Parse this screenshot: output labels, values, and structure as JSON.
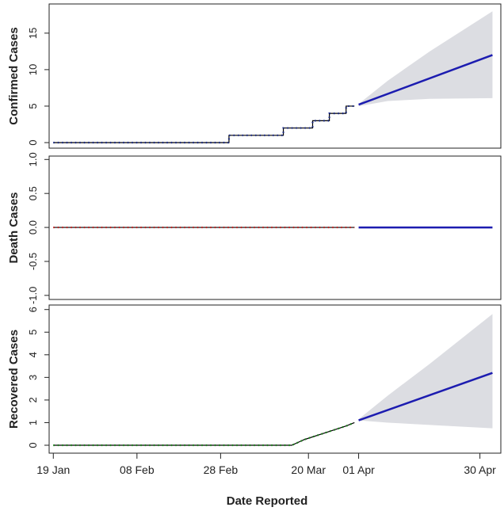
{
  "chart_data": [
    {
      "type": "line",
      "ylabel": "Confirmed Cases",
      "xlim": [
        -1,
        107
      ],
      "ylim": [
        -0.76,
        19
      ],
      "yticks": [
        0,
        5,
        10,
        15
      ],
      "series": [
        {
          "color": "#000000",
          "marker_color": "#1a2a8a",
          "style": "dotted",
          "x": [
            0,
            42,
            42,
            55,
            55,
            62,
            62,
            66,
            66,
            70,
            70,
            72
          ],
          "values": [
            0,
            0,
            1,
            1,
            2,
            2,
            3,
            3,
            4,
            4,
            5,
            5
          ]
        },
        {
          "color": "#1c1cb0",
          "style": "solid",
          "x": [
            73,
            105
          ],
          "values": [
            5.2,
            12
          ]
        }
      ],
      "band": {
        "color": "#dcdde2",
        "x": [
          73,
          80,
          90,
          105
        ],
        "lower": [
          5.0,
          5.7,
          6.0,
          6.1
        ],
        "upper": [
          5.3,
          8.5,
          12.5,
          18
        ]
      }
    },
    {
      "type": "line",
      "ylabel": "Death Cases",
      "xlim": [
        -1,
        107
      ],
      "ylim": [
        -1.06,
        1.05
      ],
      "yticks": [
        {
          "value": -1,
          "label": "-1.0"
        },
        -0.5,
        {
          "value": 0,
          "label": "0.0"
        },
        0.5,
        {
          "value": 1,
          "label": "1.0"
        }
      ],
      "series": [
        {
          "color": "#000000",
          "marker_color": "#d02020",
          "style": "dotted",
          "x": [
            0,
            72
          ],
          "values": [
            0,
            0
          ]
        },
        {
          "color": "#1c1cb0",
          "style": "solid",
          "x": [
            73,
            105
          ],
          "values": [
            0,
            0
          ]
        }
      ]
    },
    {
      "type": "line",
      "ylabel": "Recovered Cases",
      "xlabel": "Date Reported",
      "xlim": [
        -1,
        107
      ],
      "ylim": [
        -0.35,
        6.2
      ],
      "yticks": [
        0,
        1,
        2,
        3,
        4,
        5,
        6
      ],
      "xticks": [
        {
          "value": 0,
          "label": "19 Jan"
        },
        {
          "value": 20,
          "label": "08 Feb"
        },
        {
          "value": 40,
          "label": "28 Feb"
        },
        {
          "value": 61,
          "label": "20 Mar"
        },
        {
          "value": 73,
          "label": "01 Apr"
        },
        {
          "value": 102,
          "label": "30 Apr"
        }
      ],
      "series": [
        {
          "color": "#000000",
          "marker_color": "#1a8a1a",
          "style": "dotted",
          "x": [
            0,
            57,
            60,
            65,
            70,
            72
          ],
          "values": [
            0,
            0,
            0.25,
            0.55,
            0.85,
            1.0
          ]
        },
        {
          "color": "#1c1cb0",
          "style": "solid",
          "x": [
            73,
            105
          ],
          "values": [
            1.1,
            3.2
          ]
        }
      ],
      "band": {
        "color": "#dcdde2",
        "x": [
          73,
          80,
          90,
          105
        ],
        "lower": [
          1.1,
          1.0,
          0.9,
          0.75
        ],
        "upper": [
          1.15,
          2.2,
          3.6,
          5.8
        ]
      }
    }
  ]
}
